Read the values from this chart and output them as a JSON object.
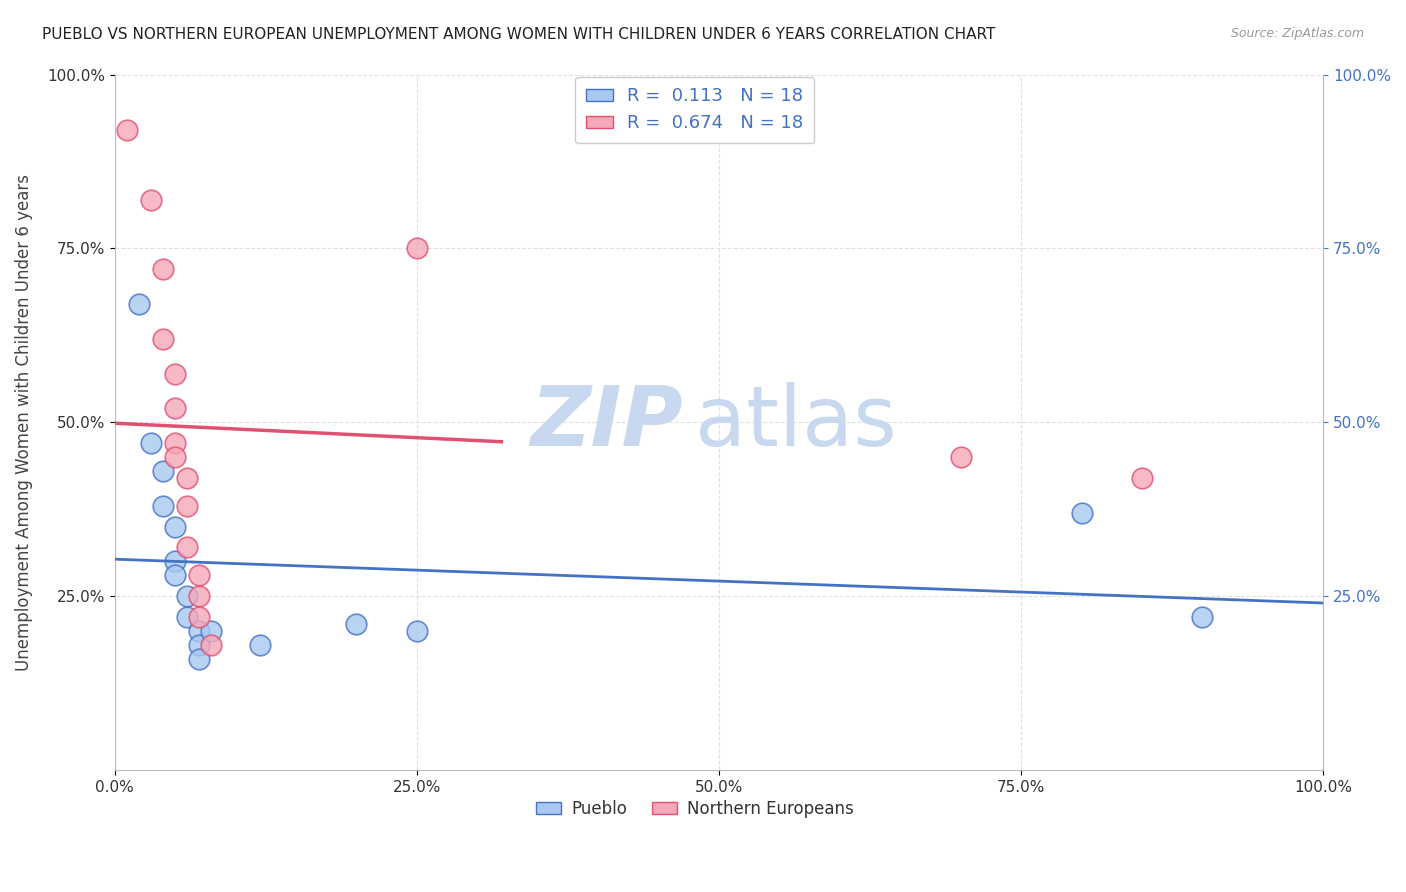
{
  "title": "PUEBLO VS NORTHERN EUROPEAN UNEMPLOYMENT AMONG WOMEN WITH CHILDREN UNDER 6 YEARS CORRELATION CHART",
  "source": "Source: ZipAtlas.com",
  "ylabel": "Unemployment Among Women with Children Under 6 years",
  "xlim": [
    0,
    1.0
  ],
  "ylim": [
    0,
    1.0
  ],
  "xtick_labels": [
    "0.0%",
    "25.0%",
    "50.0%",
    "75.0%",
    "100.0%"
  ],
  "xtick_values": [
    0.0,
    0.25,
    0.5,
    0.75,
    1.0
  ],
  "ytick_labels": [
    "100.0%",
    "75.0%",
    "50.0%",
    "25.0%"
  ],
  "ytick_values": [
    1.0,
    0.75,
    0.5,
    0.25
  ],
  "pueblo_color": "#a8c8f0",
  "northern_color": "#f5a8b8",
  "pueblo_scatter": [
    [
      0.02,
      0.67
    ],
    [
      0.03,
      0.47
    ],
    [
      0.04,
      0.43
    ],
    [
      0.04,
      0.38
    ],
    [
      0.05,
      0.35
    ],
    [
      0.05,
      0.3
    ],
    [
      0.05,
      0.28
    ],
    [
      0.06,
      0.25
    ],
    [
      0.06,
      0.22
    ],
    [
      0.07,
      0.2
    ],
    [
      0.07,
      0.18
    ],
    [
      0.07,
      0.16
    ],
    [
      0.08,
      0.2
    ],
    [
      0.12,
      0.18
    ],
    [
      0.2,
      0.21
    ],
    [
      0.25,
      0.2
    ],
    [
      0.8,
      0.37
    ],
    [
      0.9,
      0.22
    ]
  ],
  "northern_scatter": [
    [
      0.01,
      0.92
    ],
    [
      0.03,
      0.82
    ],
    [
      0.04,
      0.72
    ],
    [
      0.04,
      0.62
    ],
    [
      0.05,
      0.57
    ],
    [
      0.05,
      0.52
    ],
    [
      0.05,
      0.47
    ],
    [
      0.05,
      0.45
    ],
    [
      0.06,
      0.42
    ],
    [
      0.06,
      0.38
    ],
    [
      0.06,
      0.32
    ],
    [
      0.07,
      0.28
    ],
    [
      0.07,
      0.25
    ],
    [
      0.07,
      0.22
    ],
    [
      0.08,
      0.18
    ],
    [
      0.25,
      0.75
    ],
    [
      0.7,
      0.45
    ],
    [
      0.85,
      0.42
    ]
  ],
  "pueblo_R": "0.113",
  "pueblo_N": "18",
  "northern_R": "0.674",
  "northern_N": "18",
  "pueblo_line_color": "#4472c4",
  "northern_line_color": "#e05070",
  "watermark_zip": "ZIP",
  "watermark_atlas": "atlas",
  "watermark_color_zip": "#c8d8ee",
  "watermark_color_atlas": "#c8d8ee",
  "background_color": "#ffffff",
  "grid_color": "#dddddd",
  "bottom_legend_pueblo": "Pueblo",
  "bottom_legend_northern": "Northern Europeans"
}
